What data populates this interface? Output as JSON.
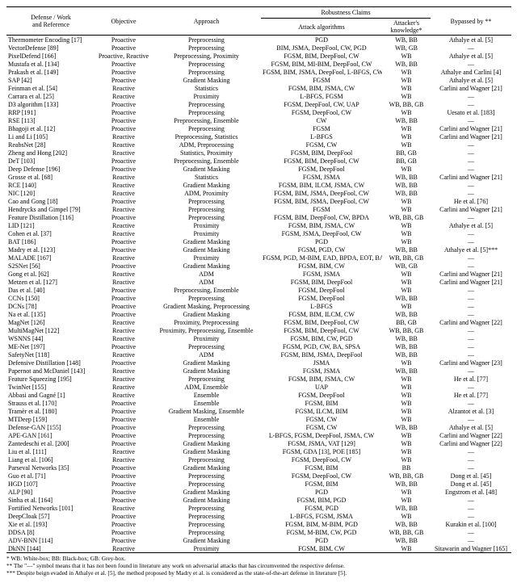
{
  "headers": {
    "col0a": "Defense / Work",
    "col0b": "and Reference",
    "col1": "Objective",
    "col2": "Approach",
    "col3group": "Robustness Claims",
    "col3a": "Attack algorithms",
    "col3b": "Attacker's knowledge*",
    "col4": "Bypassed by **"
  },
  "footnotes": {
    "f1": "* WB: White-box; BB: Black-box; GB: Grey-box.",
    "f2": "** The \"—\" symbol means that it has not been found in literature any work on adversarial attacks that has circumvented the respective defense.",
    "f3": "*** Despite beign evaded in Athalye et al. [5], the method proposed by Madry et al. is considered as the state-of-the-art defense in literature [5]."
  },
  "rows": [
    {
      "d": "Thermometer Encoding [17]",
      "o": "Proactive",
      "a": "Preprocessing",
      "atk": "PGD",
      "k": "WB, BB",
      "b": "Athalye et al. [5]"
    },
    {
      "d": "VectorDefense [89]",
      "o": "Proactive",
      "a": "Preprocessing",
      "atk": "BIM, JSMA, DeepFool, CW, PGD",
      "k": "WB, GB",
      "b": "—"
    },
    {
      "d": "PixelDefend [166]",
      "o": "Proactive, Reactive",
      "a": "Preprocessing, Proximity",
      "atk": "FGSM, BIM, DeepFool, CW",
      "k": "WB",
      "b": "Athalye et al. [5]"
    },
    {
      "d": "Mustafa et al. [134]",
      "o": "Proactive",
      "a": "Preprocessing",
      "atk": "FGSM, BIM, MI-BIM, DeepFool, CW",
      "k": "WB, BB",
      "b": "—"
    },
    {
      "d": "Prakash et al. [149]",
      "o": "Proactive",
      "a": "Preprocessing",
      "atk": "FGSM, BIM, JSMA, DeepFool, L-BFGS, CW",
      "k": "WB",
      "b": "Athalye and Carlini [4]"
    },
    {
      "d": "SAP [42]",
      "o": "Proactive",
      "a": "Gradient Masking",
      "atk": "FGSM",
      "k": "WB",
      "b": "Athalye et al. [5]"
    },
    {
      "d": "Feinman et al. [54]",
      "o": "Reactive",
      "a": "Statistics",
      "atk": "FGSM, BIM, JSMA, CW",
      "k": "WB",
      "b": "Carlini and Wagner [21]"
    },
    {
      "d": "Carrara et al. [25]",
      "o": "Reactive",
      "a": "Proximity",
      "atk": "L-BFGS, FGSM",
      "k": "WB",
      "b": "—"
    },
    {
      "d": "D3 algorithm [133]",
      "o": "Proactive",
      "a": "Preprocessing",
      "atk": "FGSM, DeepFool, CW, UAP",
      "k": "WB, BB, GB",
      "b": "—"
    },
    {
      "d": "RRP [191]",
      "o": "Proactive",
      "a": "Preprocessing",
      "atk": "FGSM, DeepFool, CW",
      "k": "WB",
      "b": "Uesato et al. [183]"
    },
    {
      "d": "RSE [113]",
      "o": "Proactive",
      "a": "Preprocessing, Ensemble",
      "atk": "CW",
      "k": "WB, BB",
      "b": "—"
    },
    {
      "d": "Bhagoji et al. [12]",
      "o": "Proactive",
      "a": "Preprocessing",
      "atk": "FGSM",
      "k": "WB",
      "b": "Carlini and Wagner [21]"
    },
    {
      "d": "Li and Li [105]",
      "o": "Reactive",
      "a": "Preprocessing, Statistics",
      "atk": "L-BFGS",
      "k": "WB",
      "b": "Carlini and Wagner [21]"
    },
    {
      "d": "ReabsNet [28]",
      "o": "Reactive",
      "a": "ADM, Preprocessing",
      "atk": "FGSM, CW",
      "k": "WB",
      "b": "—"
    },
    {
      "d": "Zheng and Hong [202]",
      "o": "Reactive",
      "a": "Statistics, Proximity",
      "atk": "FGSM, BIM, DeepFool",
      "k": "BB, GB",
      "b": "—"
    },
    {
      "d": "DeT [103]",
      "o": "Proactive",
      "a": "Preprocessing, Ensemble",
      "atk": "FGSM, BIM, DeepFool, CW",
      "k": "BB, GB",
      "b": "—"
    },
    {
      "d": "Deep Defense [196]",
      "o": "Proactive",
      "a": "Gradient Masking",
      "atk": "FGSM, DeepFool",
      "k": "WB",
      "b": "—"
    },
    {
      "d": "Grosse et al. [68]",
      "o": "Reactive",
      "a": "Statistics",
      "atk": "FGSM, JSMA",
      "k": "WB, BB",
      "b": "Carlini and Wagner [21]"
    },
    {
      "d": "RCE [140]",
      "o": "Reactive",
      "a": "Gradient Masking",
      "atk": "FGSM, BIM, ILCM, JSMA, CW",
      "k": "WB, BB",
      "b": "—"
    },
    {
      "d": "NIC [120]",
      "o": "Reactive",
      "a": "ADM, Proximity",
      "atk": "FGSM, BIM, JSMA, DeepFool, CW",
      "k": "WB, BB",
      "b": "—"
    },
    {
      "d": "Cao and Gong [18]",
      "o": "Proactive",
      "a": "Preprocessing",
      "atk": "FGSM, BIM, JSMA, DeepFool, CW",
      "k": "WB",
      "b": "He et al. [76]"
    },
    {
      "d": "Hendrycks and Gimpel [79]",
      "o": "Reactive",
      "a": "Preprocessing",
      "atk": "FGSM",
      "k": "WB",
      "b": "Carlini and Wagner [21]"
    },
    {
      "d": "Feature Distillation [116]",
      "o": "Proactive",
      "a": "Preprocessing",
      "atk": "FGSM, BIM, DeepFool, CW, BPDA",
      "k": "WB, BB, GB",
      "b": "—"
    },
    {
      "d": "LID [121]",
      "o": "Reactive",
      "a": "Proximity",
      "atk": "FGSM, BIM, JSMA, CW",
      "k": "WB",
      "b": "Athalye et al. [5]"
    },
    {
      "d": "Cohen et al. [37]",
      "o": "Reactive",
      "a": "Proximity",
      "atk": "FGSM, JSMA, DeepFool, CW",
      "k": "WB",
      "b": "—"
    },
    {
      "d": "BAT [186]",
      "o": "Proactive",
      "a": "Gradient Masking",
      "atk": "PGD",
      "k": "WB",
      "b": "—"
    },
    {
      "d": "Madry et al. [123]",
      "o": "Proactive",
      "a": "Gradient Masking",
      "atk": "FGSM, PGD, CW",
      "k": "WB, BB",
      "b": "Athalye et al. [5]***"
    },
    {
      "d": "MALADE [167]",
      "o": "Reactive",
      "a": "Proximity",
      "atk": "FGSM, PGD, M-BIM, EAD, BPDA, EOT, BA",
      "k": "WB, BB, GB",
      "b": "—"
    },
    {
      "d": "S2SNet [56]",
      "o": "Proactive",
      "a": "Gradient Masking",
      "atk": "FGSM, BIM, CW",
      "k": "WB, GB",
      "b": "—"
    },
    {
      "d": "Gong et al. [62]",
      "o": "Reactive",
      "a": "ADM",
      "atk": "FGSM, JSMA",
      "k": "WB",
      "b": "Carlini and Wagner [21]"
    },
    {
      "d": "Metzen et al. [127]",
      "o": "Reactive",
      "a": "ADM",
      "atk": "FGSM, BIM, DeepFool",
      "k": "WB",
      "b": "Carlini and Wagner [21]"
    },
    {
      "d": "Das et al. [40]",
      "o": "Proactive",
      "a": "Preprocessing, Ensemble",
      "atk": "FGSM, DeepFool",
      "k": "WB",
      "b": "—"
    },
    {
      "d": "CCNs [150]",
      "o": "Proactive",
      "a": "Preprocessing",
      "atk": "FGSM, DeepFool",
      "k": "WB, BB",
      "b": "—"
    },
    {
      "d": "DCNs [78]",
      "o": "Proactive",
      "a": "Gradient Masking, Preprocessing",
      "atk": "L-BFGS",
      "k": "WB",
      "b": "—"
    },
    {
      "d": "Na et al. [135]",
      "o": "Proactive",
      "a": "Gradient Masking",
      "atk": "FGSM, BIM, ILCM, CW",
      "k": "WB, BB",
      "b": "—"
    },
    {
      "d": "MagNet [126]",
      "o": "Reactive",
      "a": "Proximity, Preprocessing",
      "atk": "FGSM, BIM, DeepFool, CW",
      "k": "BB, GB",
      "b": "Carlini and Wagner [22]"
    },
    {
      "d": "MultiMagNet [122]",
      "o": "Reactive",
      "a": "Proximity, Preprocessing, Ensemble",
      "atk": "FGSM, BIM, DeepFool, CW",
      "k": "WB, BB, GB",
      "b": "—"
    },
    {
      "d": "WSNNS [44]",
      "o": "Reactive",
      "a": "Proximity",
      "atk": "FGSM, BIM, CW, PGD",
      "k": "WB, BB",
      "b": "—"
    },
    {
      "d": "ME-Net [197]",
      "o": "Proactive",
      "a": "Preprocessing",
      "atk": "FGSM, PGD, CW, BA, SPSA",
      "k": "WB, BB",
      "b": "—"
    },
    {
      "d": "SafetyNet [118]",
      "o": "Reactive",
      "a": "ADM",
      "atk": "FGSM, BIM, JSMA, DeepFool",
      "k": "WB, BB",
      "b": "—"
    },
    {
      "d": "Defensive Distillation [148]",
      "o": "Proactive",
      "a": "Gradient Masking",
      "atk": "JSMA",
      "k": "WB",
      "b": "Carlini and Wagner [23]"
    },
    {
      "d": "Papernot and McDaniel [143]",
      "o": "Reactive",
      "a": "Gradient Masking",
      "atk": "FGSM, JSMA",
      "k": "WB, BB",
      "b": "—"
    },
    {
      "d": "Feature Squeezing [195]",
      "o": "Reactive",
      "a": "Preprocessing",
      "atk": "FGSM, BIM, JSMA, CW",
      "k": "WB",
      "b": "He et al. [77]"
    },
    {
      "d": "TwinNet [155]",
      "o": "Reactive",
      "a": "ADM, Ensemble",
      "atk": "UAP",
      "k": "WB",
      "b": "—"
    },
    {
      "d": "Abbasi and Gagné [1]",
      "o": "Reactive",
      "a": "Ensemble",
      "atk": "FGSM, DeepFool",
      "k": "WB",
      "b": "He et al. [77]"
    },
    {
      "d": "Strauss et al. [170]",
      "o": "Proactive",
      "a": "Ensemble",
      "atk": "FGSM, BIM",
      "k": "WB",
      "b": "—"
    },
    {
      "d": "Tramèr et al. [180]",
      "o": "Proactive",
      "a": "Gradient Masking, Ensemble",
      "atk": "FGSM, ILCM, BIM",
      "k": "WB",
      "b": "Alzantot et al. [3]"
    },
    {
      "d": "MTDeep [159]",
      "o": "Proactive",
      "a": "Ensemble",
      "atk": "FGSM, CW",
      "k": "WB",
      "b": "—"
    },
    {
      "d": "Defense-GAN [155]",
      "o": "Proactive",
      "a": "Preprocessing",
      "atk": "FGSM, CW",
      "k": "WB, BB",
      "b": "Athalye et al. [5]"
    },
    {
      "d": "APE-GAN [161]",
      "o": "Proactive",
      "a": "Preprocessing",
      "atk": "L-BFGS, FGSM, DeepFool, JSMA, CW",
      "k": "WB",
      "b": "Carlini and Wagner [22]"
    },
    {
      "d": "Zantedeschi et al. [200]",
      "o": "Proactive",
      "a": "Gradient Masking",
      "atk": "FGSM, JSMA, VAT [129]",
      "k": "WB",
      "b": "Carlini and Wagner [22]"
    },
    {
      "d": "Liu et al. [111]",
      "o": "Reactive",
      "a": "Gradient Masking",
      "atk": "FGSM, GDA [13], POE [185]",
      "k": "WB",
      "b": "—"
    },
    {
      "d": "Liang et al. [106]",
      "o": "Reactive",
      "a": "Preprocessing",
      "atk": "FGSM, DeepFool, CW",
      "k": "WB",
      "b": "—"
    },
    {
      "d": "Parseval Networks [35]",
      "o": "Proactive",
      "a": "Gradient Masking",
      "atk": "FGSM, BIM",
      "k": "BB",
      "b": "—"
    },
    {
      "d": "Guo et al. [71]",
      "o": "Proactive",
      "a": "Preprocessing",
      "atk": "FGSM, DeepFool, CW",
      "k": "WB, BB, GB",
      "b": "Dong et al. [45]"
    },
    {
      "d": "HGD [107]",
      "o": "Proactive",
      "a": "Preprocessing",
      "atk": "FGSM, BIM",
      "k": "WB, BB",
      "b": "Dong et al. [45]"
    },
    {
      "d": "ALP [90]",
      "o": "Proactive",
      "a": "Gradient Masking",
      "atk": "PGD",
      "k": "WB",
      "b": "Engstrom et al. [48]"
    },
    {
      "d": "Sinha et al. [164]",
      "o": "Proactive",
      "a": "Gradient Masking",
      "atk": "FGSM, BIM, PGD",
      "k": "WB",
      "b": "—"
    },
    {
      "d": "Fortified Networks [101]",
      "o": "Reactive",
      "a": "Preprocessing",
      "atk": "FGSM, PGD",
      "k": "WB, BB",
      "b": "—"
    },
    {
      "d": "DeepCloak [57]",
      "o": "Proactive",
      "a": "Preprocessing",
      "atk": "L-BFGS, FGSM, JSMA",
      "k": "WB",
      "b": "—"
    },
    {
      "d": "Xie et al. [193]",
      "o": "Proactive",
      "a": "Preprocessing",
      "atk": "FGSM, BIM, M-BIM, PGD",
      "k": "WB, BB",
      "b": "Kurakin et al. [100]"
    },
    {
      "d": "DDSA [8]",
      "o": "Proactive",
      "a": "Preprocessing",
      "atk": "FGSM, M-BIM, CW, PGD",
      "k": "WB, BB, GB",
      "b": "—"
    },
    {
      "d": "ADV-BNN [114]",
      "o": "Proactive",
      "a": "Gradient Masking",
      "atk": "PGD",
      "k": "WB, BB",
      "b": "—"
    },
    {
      "d": "DkNN [144]",
      "o": "Reactive",
      "a": "Proximity",
      "atk": "FGSM, BIM, CW",
      "k": "WB",
      "b": "Sitawarin and Wagner [165]"
    }
  ]
}
